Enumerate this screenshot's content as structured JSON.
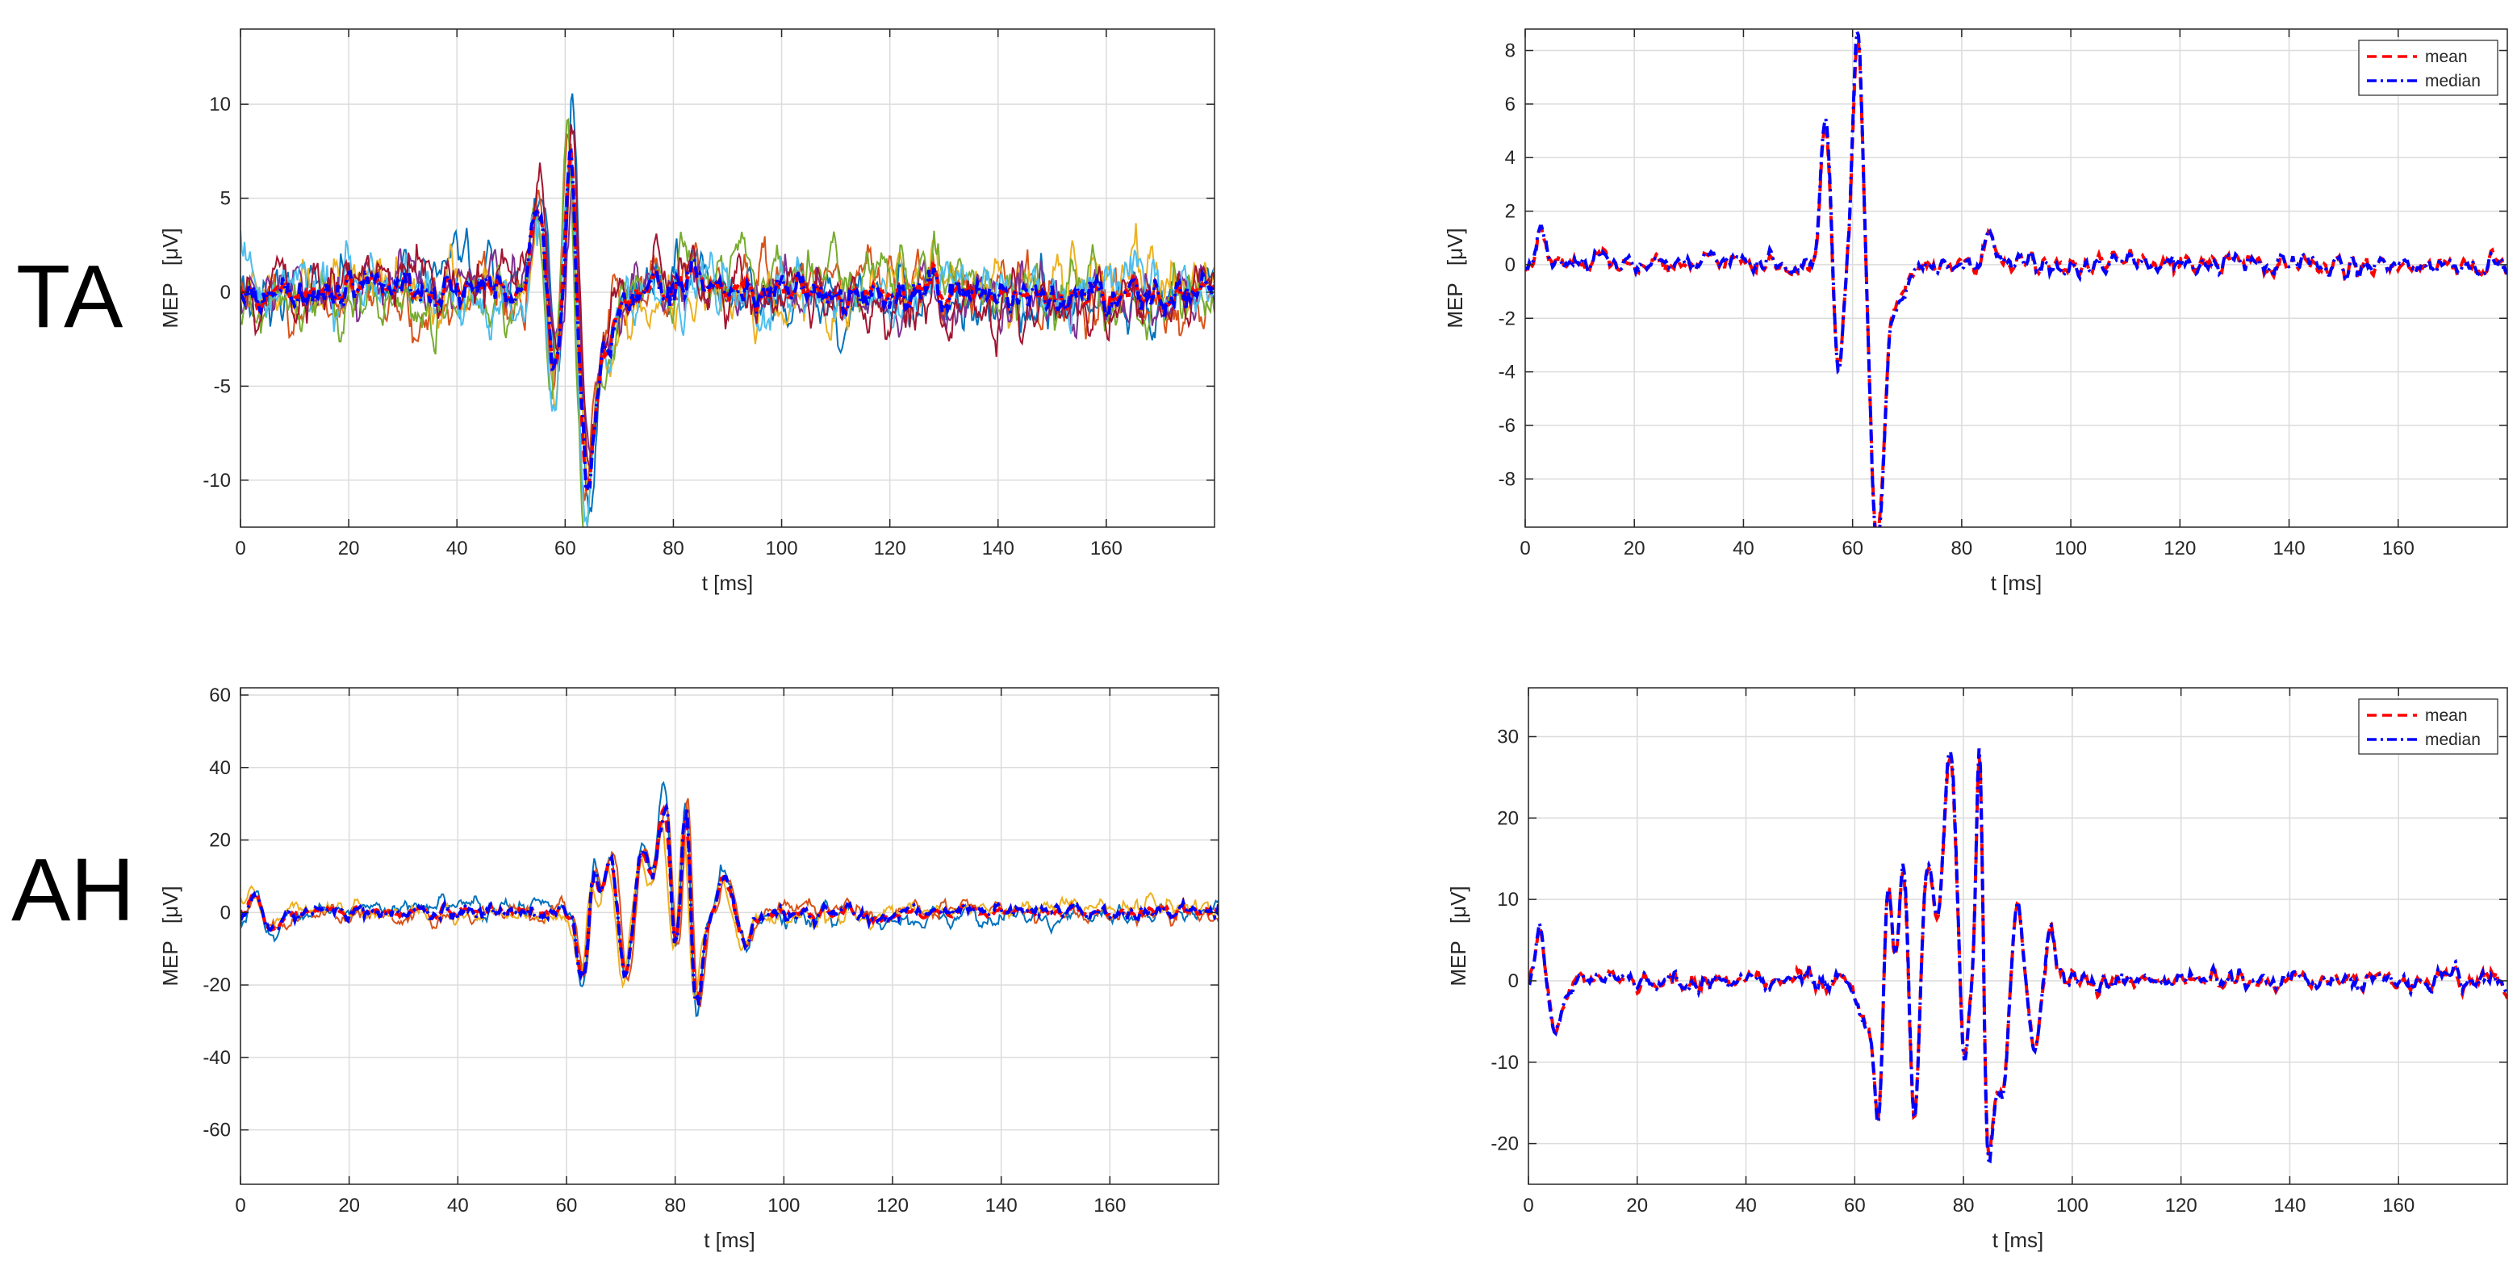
{
  "rows": [
    {
      "label": "TA"
    },
    {
      "label": "AH"
    }
  ],
  "colors": {
    "trial_palette": [
      "#0072BD",
      "#D95319",
      "#EDB120",
      "#7E2F8E",
      "#77AC30",
      "#4DBEEE",
      "#A2142F"
    ],
    "mean": "#FF0000",
    "median": "#0000FF",
    "grid": "#DCDCDC",
    "axis": "#262626"
  },
  "chart_data": [
    {
      "id": "ta-trials",
      "type": "line",
      "title": "",
      "xlabel": "t [ms]",
      "ylabel": "MEP   [μV]",
      "xlim": [
        0,
        180
      ],
      "ylim": [
        -12.5,
        14
      ],
      "xticks": [
        0,
        20,
        40,
        60,
        80,
        100,
        120,
        140,
        160
      ],
      "yticks": [
        -10,
        -5,
        0,
        5,
        10
      ],
      "grid": true,
      "trials": 7,
      "noise": 1.2,
      "events": [
        {
          "t": 55,
          "a": 4.5,
          "w": 1.3
        },
        {
          "t": 58,
          "a": -5.0,
          "w": 1.0
        },
        {
          "t": 61,
          "a": 9.0,
          "w": 0.9
        },
        {
          "t": 64,
          "a": -10.0,
          "w": 1.2
        },
        {
          "t": 67,
          "a": -3.0,
          "w": 2.0
        },
        {
          "t": 84,
          "a": 1.0,
          "w": 2.0
        }
      ],
      "series": [
        {
          "name": "mean",
          "style": "dash"
        },
        {
          "name": "median",
          "style": "dashdot"
        }
      ]
    },
    {
      "id": "ta-summary",
      "type": "line",
      "title": "",
      "xlabel": "t [ms]",
      "ylabel": "MEP   [μV]",
      "xlim": [
        0,
        180
      ],
      "ylim": [
        -9.8,
        8.8
      ],
      "xticks": [
        0,
        20,
        40,
        60,
        80,
        100,
        120,
        140,
        160
      ],
      "yticks": [
        -8,
        -6,
        -4,
        -2,
        0,
        2,
        4,
        6,
        8
      ],
      "grid": true,
      "legend": {
        "position": "top-right",
        "entries": [
          "mean",
          "median"
        ]
      },
      "noise": 0.3,
      "events": [
        {
          "t": 3,
          "a": 1.0,
          "w": 0.8
        },
        {
          "t": 55,
          "a": 5.0,
          "w": 0.9
        },
        {
          "t": 57.5,
          "a": -4.0,
          "w": 0.8
        },
        {
          "t": 61,
          "a": 8.5,
          "w": 0.9
        },
        {
          "t": 64.5,
          "a": -9.5,
          "w": 1.1
        },
        {
          "t": 67,
          "a": -2.0,
          "w": 1.8
        },
        {
          "t": 85,
          "a": 1.3,
          "w": 1.0
        }
      ],
      "series": [
        {
          "name": "mean",
          "style": "dash"
        },
        {
          "name": "median",
          "style": "dashdot"
        }
      ]
    },
    {
      "id": "ah-trials",
      "type": "line",
      "title": "",
      "xlabel": "t [ms]",
      "ylabel": "MEP   [μV]",
      "xlim": [
        0,
        180
      ],
      "ylim": [
        -75,
        62
      ],
      "xticks": [
        0,
        20,
        40,
        60,
        80,
        100,
        120,
        140,
        160
      ],
      "yticks": [
        -60,
        -40,
        -20,
        0,
        20,
        40,
        60
      ],
      "grid": true,
      "trials": 3,
      "noise": 2.0,
      "events": [
        {
          "t": 3,
          "a": 6,
          "w": 1.0
        },
        {
          "t": 6,
          "a": -6,
          "w": 1.5
        },
        {
          "t": 63,
          "a": -18,
          "w": 1.0
        },
        {
          "t": 65,
          "a": 14,
          "w": 0.8
        },
        {
          "t": 68,
          "a": 15,
          "w": 0.9
        },
        {
          "t": 71,
          "a": -18,
          "w": 0.9
        },
        {
          "t": 74,
          "a": 16,
          "w": 1.1
        },
        {
          "t": 78,
          "a": 28,
          "w": 1.2
        },
        {
          "t": 80,
          "a": -15,
          "w": 0.8
        },
        {
          "t": 82,
          "a": 32,
          "w": 0.7
        },
        {
          "t": 84,
          "a": -25,
          "w": 1.0
        },
        {
          "t": 89,
          "a": 10,
          "w": 1.0
        },
        {
          "t": 93,
          "a": -8,
          "w": 1.2
        }
      ],
      "series": [
        {
          "name": "mean",
          "style": "dash"
        },
        {
          "name": "median",
          "style": "dashdot"
        }
      ]
    },
    {
      "id": "ah-summary",
      "type": "line",
      "title": "",
      "xlabel": "t [ms]",
      "ylabel": "MEP   [μV]",
      "xlim": [
        0,
        180
      ],
      "ylim": [
        -25,
        36
      ],
      "xticks": [
        0,
        20,
        40,
        60,
        80,
        100,
        120,
        140,
        160
      ],
      "yticks": [
        -20,
        -10,
        0,
        10,
        20,
        30
      ],
      "grid": true,
      "legend": {
        "position": "top-right",
        "entries": [
          "mean",
          "median"
        ]
      },
      "noise": 0.9,
      "events": [
        {
          "t": 2,
          "a": 6,
          "w": 0.8
        },
        {
          "t": 5,
          "a": -6,
          "w": 1.2
        },
        {
          "t": 62,
          "a": -6,
          "w": 1.0
        },
        {
          "t": 64.5,
          "a": -16,
          "w": 0.8
        },
        {
          "t": 66,
          "a": 14,
          "w": 0.7
        },
        {
          "t": 69,
          "a": 15,
          "w": 0.8
        },
        {
          "t": 71,
          "a": -18,
          "w": 0.8
        },
        {
          "t": 73.5,
          "a": 14,
          "w": 1.0
        },
        {
          "t": 77.5,
          "a": 27,
          "w": 1.2
        },
        {
          "t": 80,
          "a": -12,
          "w": 0.7
        },
        {
          "t": 83,
          "a": 32,
          "w": 0.6
        },
        {
          "t": 84.5,
          "a": -22,
          "w": 0.9
        },
        {
          "t": 87,
          "a": -13,
          "w": 1.0
        },
        {
          "t": 90,
          "a": 10,
          "w": 0.8
        },
        {
          "t": 93,
          "a": -8,
          "w": 0.9
        },
        {
          "t": 96,
          "a": 6,
          "w": 0.8
        }
      ],
      "series": [
        {
          "name": "mean",
          "style": "dash"
        },
        {
          "name": "median",
          "style": "dashdot"
        }
      ]
    }
  ]
}
